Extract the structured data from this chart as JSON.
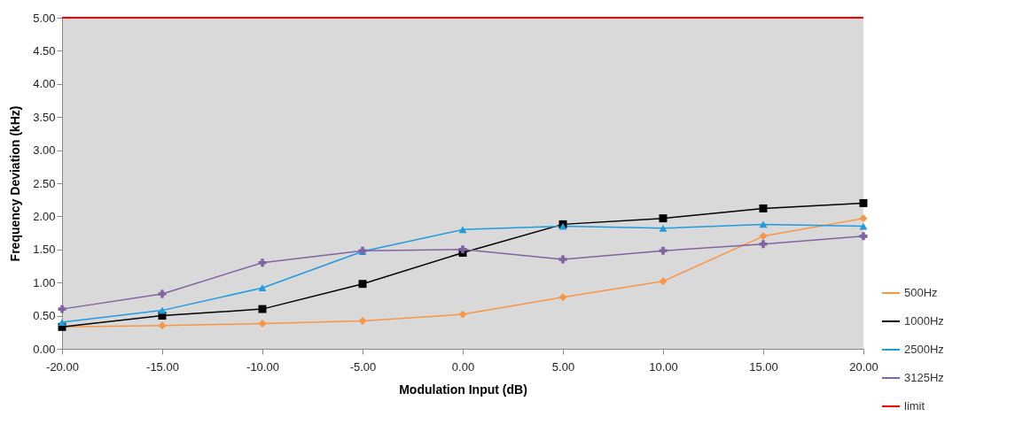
{
  "chart_data": {
    "type": "line",
    "xlabel": "Modulation Input (dB)",
    "ylabel": "Frequency Deviation (kHz)",
    "x": [
      -20,
      -15,
      -10,
      -5,
      0,
      5,
      10,
      15,
      20
    ],
    "xlim": [
      -20,
      20
    ],
    "xticks": [
      {
        "value": -20,
        "label": "-20.00"
      },
      {
        "value": -15,
        "label": "-15.00"
      },
      {
        "value": -10,
        "label": "-10.00"
      },
      {
        "value": -5,
        "label": "-5.00"
      },
      {
        "value": 0,
        "label": "0.00"
      },
      {
        "value": 5,
        "label": "5.00"
      },
      {
        "value": 10,
        "label": "10.00"
      },
      {
        "value": 15,
        "label": "15.00"
      },
      {
        "value": 20,
        "label": "20.00"
      }
    ],
    "ylim": [
      0,
      5
    ],
    "yticks": [
      {
        "value": 0,
        "label": "0.00"
      },
      {
        "value": 0.5,
        "label": "0.50"
      },
      {
        "value": 1,
        "label": "1.00"
      },
      {
        "value": 1.5,
        "label": "1.50"
      },
      {
        "value": 2,
        "label": "2.00"
      },
      {
        "value": 2.5,
        "label": "2.50"
      },
      {
        "value": 3,
        "label": "3.00"
      },
      {
        "value": 3.5,
        "label": "3.50"
      },
      {
        "value": 4,
        "label": "4.00"
      },
      {
        "value": 4.5,
        "label": "4.50"
      },
      {
        "value": 5,
        "label": "5.00"
      }
    ],
    "series": [
      {
        "name": "500Hz",
        "color": "#f79646",
        "marker": "diamond",
        "values": [
          0.33,
          0.35,
          0.38,
          0.42,
          0.52,
          0.78,
          1.02,
          1.7,
          1.97
        ]
      },
      {
        "name": "1000Hz",
        "color": "#000000",
        "marker": "square",
        "values": [
          0.33,
          0.5,
          0.6,
          0.98,
          1.45,
          1.88,
          1.97,
          2.12,
          2.2
        ]
      },
      {
        "name": "2500Hz",
        "color": "#1f9bde",
        "marker": "triangle",
        "values": [
          0.4,
          0.58,
          0.92,
          1.47,
          1.8,
          1.85,
          1.82,
          1.88,
          1.85
        ]
      },
      {
        "name": "3125Hz",
        "color": "#8064a2",
        "marker": "cross",
        "values": [
          0.6,
          0.83,
          1.3,
          1.48,
          1.5,
          1.35,
          1.48,
          1.58,
          1.7
        ]
      }
    ],
    "ref_lines": [
      {
        "axis": "y",
        "value": 5,
        "label": "limit",
        "color": "#ff0000"
      }
    ],
    "legend": "bottom right",
    "grid": false
  }
}
